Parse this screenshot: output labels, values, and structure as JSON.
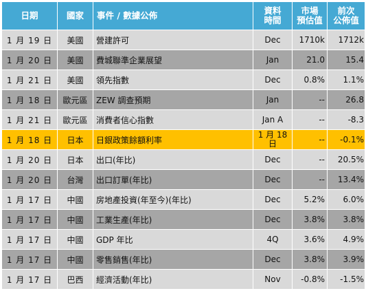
{
  "table": {
    "headers": {
      "date": "日期",
      "country": "國家",
      "event": "事件 / 數據公佈",
      "period_line1": "資料",
      "period_line2": "時間",
      "estimate_line1": "市場",
      "estimate_line2": "預估值",
      "previous_line1": "前次",
      "previous_line2": "公佈值"
    },
    "rows": [
      {
        "date": "1 月 19 日",
        "country": "美國",
        "event": "營建許可",
        "period": "Dec",
        "estimate": "1710k",
        "previous": "1712k",
        "style": "light"
      },
      {
        "date": "1 月 20 日",
        "country": "美國",
        "event": "費城聯準企業展望",
        "period": "Jan",
        "estimate": "21.0",
        "previous": "15.4",
        "style": "dark"
      },
      {
        "date": "1 月 21 日",
        "country": "美國",
        "event": "領先指數",
        "period": "Dec",
        "estimate": "0.8%",
        "previous": "1.1%",
        "style": "light"
      },
      {
        "date": "1 月 18 日",
        "country": "歐元區",
        "event": "ZEW 調查預期",
        "period": "Jan",
        "estimate": "--",
        "previous": "26.8",
        "style": "dark"
      },
      {
        "date": "1 月 21 日",
        "country": "歐元區",
        "event": "消費者信心指數",
        "period": "Jan A",
        "estimate": "--",
        "previous": "-8.3",
        "style": "light"
      },
      {
        "date": "1 月 18 日",
        "country": "日本",
        "event": "日銀政策餘額利率",
        "period": "1 月 18 日",
        "estimate": "--",
        "previous": "-0.1%",
        "style": "highlight"
      },
      {
        "date": "1 月 20 日",
        "country": "日本",
        "event": "出口(年比)",
        "period": "Dec",
        "estimate": "--",
        "previous": "20.5%",
        "style": "light"
      },
      {
        "date": "1 月 20 日",
        "country": "台灣",
        "event": "出口訂單(年比)",
        "period": "Dec",
        "estimate": "--",
        "previous": "13.4%",
        "style": "dark"
      },
      {
        "date": "1 月 17 日",
        "country": "中國",
        "event": "房地產投資(年至今)(年比)",
        "period": "Dec",
        "estimate": "5.2%",
        "previous": "6.0%",
        "style": "light"
      },
      {
        "date": "1 月 17 日",
        "country": "中國",
        "event": "工業生產(年比)",
        "period": "Dec",
        "estimate": "3.8%",
        "previous": "3.8%",
        "style": "dark"
      },
      {
        "date": "1 月 17 日",
        "country": "中國",
        "event": "GDP 年比",
        "period": "4Q",
        "estimate": "3.6%",
        "previous": "4.9%",
        "style": "light"
      },
      {
        "date": "1 月 17 日",
        "country": "中國",
        "event": "零售銷售(年比)",
        "period": "Dec",
        "estimate": "3.8%",
        "previous": "3.9%",
        "style": "dark"
      },
      {
        "date": "1 月 17 日",
        "country": "巴西",
        "event": "經濟活動(年比)",
        "period": "Nov",
        "estimate": "-0.8%",
        "previous": "-1.5%",
        "style": "light"
      }
    ]
  }
}
